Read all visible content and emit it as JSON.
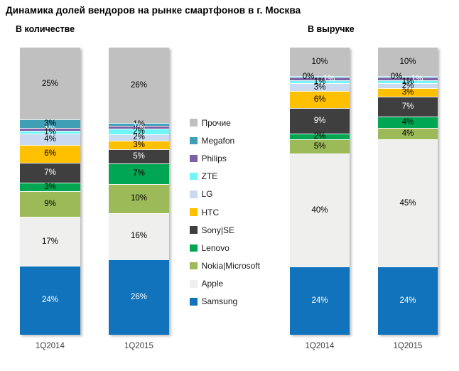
{
  "title": "Динамика долей вендоров на рынке смартфонов в г. Москва",
  "chart_data": {
    "type": "bar",
    "subtype": "100%-stacked-column",
    "title": "Динамика долей вендоров на рынке смартфонов в г. Москва",
    "unit": "%",
    "legend_position": "center-between-groups",
    "ylim": [
      0,
      100
    ],
    "grid": false,
    "series": [
      {
        "name": "Прочие",
        "color": "#C0C0C0",
        "label_color": "#000000"
      },
      {
        "name": "Megafon",
        "color": "#3E9FB5",
        "label_color": "#000000"
      },
      {
        "name": "Philips",
        "color": "#7C5FA5",
        "label_color": "#FFFFFF"
      },
      {
        "name": "ZTE",
        "color": "#70F6F6",
        "label_color": "#000000"
      },
      {
        "name": "LG",
        "color": "#C9D9EF",
        "label_color": "#000000"
      },
      {
        "name": "HTC",
        "color": "#FFC000",
        "label_color": "#000000"
      },
      {
        "name": "Sony|SE",
        "color": "#3F3F3F",
        "label_color": "#FFFFFF"
      },
      {
        "name": "Lenovo",
        "color": "#00A651",
        "label_color": "#000000"
      },
      {
        "name": "Nokia|Microsoft",
        "color": "#9CBA58",
        "label_color": "#000000"
      },
      {
        "name": "Apple",
        "color": "#EFEFED",
        "label_color": "#000000"
      },
      {
        "name": "Samsung",
        "color": "#1173BB",
        "label_color": "#FFFFFF"
      }
    ],
    "series_order": "top-of-column-to-bottom",
    "groups": [
      {
        "title": "В количестве",
        "bars": [
          {
            "category": "1Q2014",
            "values": [
              25,
              3,
              1,
              1,
              4,
              6,
              7,
              3,
              9,
              17,
              24
            ]
          },
          {
            "category": "1Q2015",
            "values": [
              26,
              1,
              1,
              2,
              2,
              3,
              5,
              7,
              10,
              16,
              26
            ]
          }
        ]
      },
      {
        "title": "В выручке",
        "bars": [
          {
            "category": "1Q2014",
            "values": [
              10,
              0,
              1,
              1,
              3,
              6,
              9,
              2,
              5,
              40,
              24
            ]
          },
          {
            "category": "1Q2015",
            "values": [
              10,
              0,
              1,
              1,
              2,
              3,
              7,
              4,
              4,
              45,
              24
            ]
          }
        ]
      }
    ]
  }
}
